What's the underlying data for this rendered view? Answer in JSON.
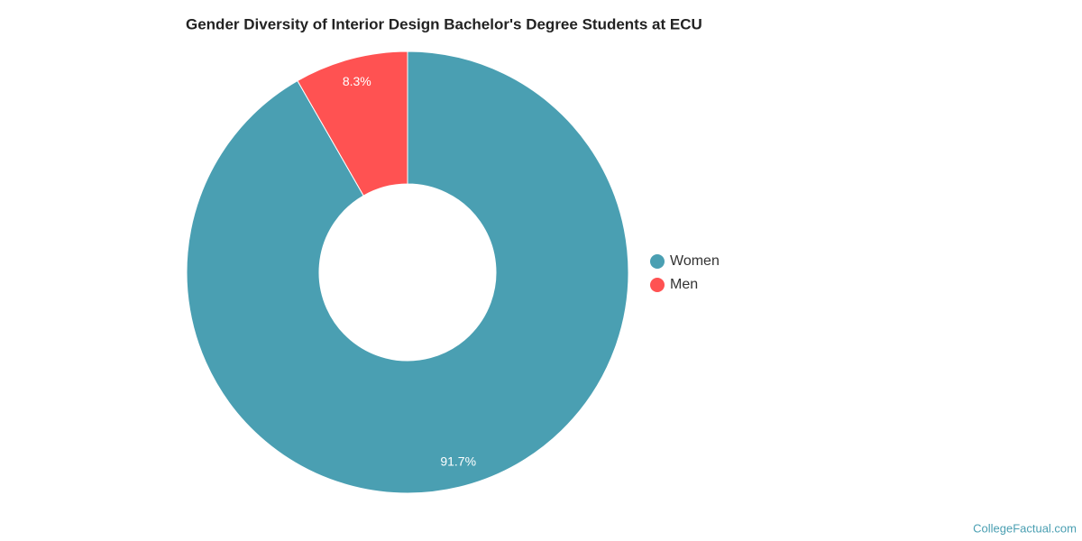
{
  "chart_data": {
    "type": "donut",
    "title": "Gender Diversity of Interior Design Bachelor's Degree Students at ECU",
    "categories": [
      "Women",
      "Men"
    ],
    "values": [
      91.7,
      8.3
    ],
    "value_labels": [
      "91.7%",
      "8.3%"
    ],
    "colors": [
      "#4a9fb2",
      "#ff5252"
    ],
    "legend": "right"
  },
  "credit": "CollegeFactual.com"
}
